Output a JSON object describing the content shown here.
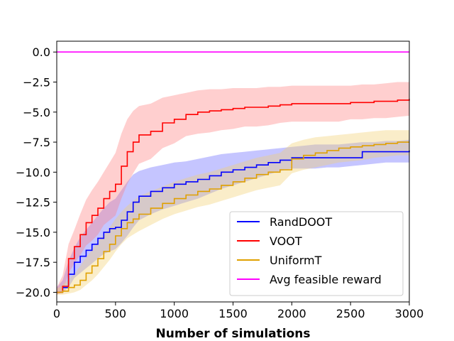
{
  "chart_data": {
    "type": "line",
    "title": "",
    "xlabel": "Number of simulations",
    "ylabel": "",
    "xlim": [
      0,
      3000
    ],
    "ylim": [
      -20.8,
      0.9
    ],
    "x_ticks": [
      0,
      500,
      1000,
      1500,
      2000,
      2500,
      3000
    ],
    "y_ticks": [
      0.0,
      -2.5,
      -5.0,
      -7.5,
      -10.0,
      -12.5,
      -15.0,
      -17.5,
      -20.0
    ],
    "grid": false,
    "legend_position": "lower-right",
    "series": [
      {
        "name": "RandDOOT",
        "color": "#0000ff",
        "band_color": "#6666ff",
        "x": [
          0,
          50,
          100,
          150,
          200,
          250,
          300,
          350,
          400,
          450,
          500,
          550,
          600,
          650,
          700,
          800,
          900,
          1000,
          1100,
          1200,
          1300,
          1400,
          1500,
          1600,
          1700,
          1800,
          1900,
          2000,
          2100,
          2200,
          2300,
          2400,
          2500,
          2600,
          2700,
          2800,
          2900,
          3000
        ],
        "y": [
          -20,
          -19.6,
          -18.5,
          -17.5,
          -17.0,
          -16.5,
          -16.0,
          -15.5,
          -15.0,
          -14.7,
          -14.6,
          -14.0,
          -13.3,
          -12.5,
          -12.0,
          -11.6,
          -11.3,
          -11.0,
          -10.8,
          -10.6,
          -10.3,
          -10.0,
          -9.8,
          -9.6,
          -9.4,
          -9.2,
          -9.0,
          -8.8,
          -8.8,
          -8.8,
          -8.8,
          -8.8,
          -8.8,
          -8.3,
          -8.3,
          -8.3,
          -8.3,
          -8.2
        ],
        "upper": [
          -19.6,
          -19.0,
          -17.4,
          -16.3,
          -15.4,
          -14.8,
          -14.2,
          -13.6,
          -13.0,
          -12.5,
          -12.2,
          -11.5,
          -10.8,
          -10.2,
          -9.9,
          -9.6,
          -9.4,
          -9.2,
          -9.1,
          -8.9,
          -8.7,
          -8.5,
          -8.4,
          -8.3,
          -8.2,
          -8.1,
          -8.0,
          -7.9,
          -7.8,
          -7.7,
          -7.7,
          -7.7,
          -7.6,
          -7.5,
          -7.5,
          -7.4,
          -7.4,
          -7.3
        ],
        "lower": [
          -20.1,
          -20.0,
          -19.6,
          -18.8,
          -18.4,
          -18.0,
          -17.6,
          -17.2,
          -16.8,
          -16.6,
          -16.4,
          -15.9,
          -15.3,
          -14.6,
          -14.0,
          -13.5,
          -13.1,
          -12.8,
          -12.5,
          -12.2,
          -11.8,
          -11.4,
          -11.1,
          -10.8,
          -10.5,
          -10.2,
          -9.9,
          -9.7,
          -9.7,
          -9.7,
          -9.6,
          -9.6,
          -9.5,
          -9.4,
          -9.3,
          -9.2,
          -9.2,
          -9.2
        ]
      },
      {
        "name": "VOOT",
        "color": "#ff0000",
        "band_color": "#ff8080",
        "x": [
          0,
          50,
          100,
          150,
          200,
          250,
          300,
          350,
          400,
          450,
          500,
          550,
          600,
          650,
          700,
          800,
          900,
          1000,
          1100,
          1200,
          1300,
          1400,
          1500,
          1600,
          1700,
          1800,
          1900,
          2000,
          2100,
          2200,
          2300,
          2400,
          2500,
          2600,
          2700,
          2800,
          2900,
          3000
        ],
        "y": [
          -20,
          -19.5,
          -17.2,
          -16.2,
          -15.2,
          -14.2,
          -13.6,
          -13.0,
          -12.2,
          -11.6,
          -11.0,
          -9.5,
          -8.3,
          -7.5,
          -6.9,
          -6.6,
          -5.9,
          -5.6,
          -5.2,
          -5.0,
          -4.9,
          -4.8,
          -4.7,
          -4.6,
          -4.6,
          -4.5,
          -4.4,
          -4.3,
          -4.3,
          -4.3,
          -4.3,
          -4.3,
          -4.2,
          -4.2,
          -4.1,
          -4.1,
          -4.0,
          -3.9
        ],
        "upper": [
          -19.6,
          -18.6,
          -16.0,
          -14.8,
          -13.5,
          -12.3,
          -11.5,
          -10.8,
          -10.0,
          -9.2,
          -8.4,
          -6.8,
          -5.6,
          -4.9,
          -4.5,
          -4.3,
          -3.8,
          -3.6,
          -3.4,
          -3.2,
          -3.1,
          -3.1,
          -3.0,
          -3.0,
          -3.0,
          -2.9,
          -2.9,
          -2.8,
          -2.8,
          -2.8,
          -2.8,
          -2.8,
          -2.8,
          -2.7,
          -2.7,
          -2.6,
          -2.5,
          -2.5
        ],
        "lower": [
          -20.2,
          -20.0,
          -18.4,
          -17.6,
          -16.9,
          -16.1,
          -15.7,
          -15.2,
          -14.4,
          -14.0,
          -13.6,
          -12.2,
          -11.0,
          -10.1,
          -9.3,
          -8.9,
          -8.0,
          -7.6,
          -7.0,
          -6.8,
          -6.7,
          -6.5,
          -6.4,
          -6.2,
          -6.2,
          -6.1,
          -5.9,
          -5.8,
          -5.8,
          -5.8,
          -5.8,
          -5.8,
          -5.6,
          -5.6,
          -5.5,
          -5.5,
          -5.4,
          -5.3
        ]
      },
      {
        "name": "UniformT",
        "color": "#e0a000",
        "band_color": "#f2d070",
        "x": [
          0,
          50,
          100,
          150,
          200,
          250,
          300,
          350,
          400,
          450,
          500,
          550,
          600,
          650,
          700,
          800,
          900,
          1000,
          1100,
          1200,
          1300,
          1400,
          1500,
          1600,
          1700,
          1800,
          1900,
          2000,
          2100,
          2200,
          2300,
          2400,
          2500,
          2600,
          2700,
          2800,
          2900,
          3000
        ],
        "y": [
          -20,
          -19.9,
          -19.6,
          -19.4,
          -19.0,
          -18.4,
          -17.8,
          -17.2,
          -16.6,
          -16.0,
          -15.3,
          -14.7,
          -14.2,
          -13.9,
          -13.5,
          -13.0,
          -12.6,
          -12.2,
          -11.9,
          -11.6,
          -11.4,
          -11.1,
          -10.8,
          -10.5,
          -10.2,
          -10.0,
          -9.8,
          -8.9,
          -8.6,
          -8.4,
          -8.2,
          -8.0,
          -7.9,
          -7.8,
          -7.7,
          -7.6,
          -7.5,
          -7.5
        ],
        "upper": [
          -19.7,
          -19.4,
          -18.9,
          -18.5,
          -17.8,
          -17.1,
          -16.5,
          -15.8,
          -15.2,
          -14.6,
          -13.9,
          -13.3,
          -12.8,
          -12.4,
          -12.0,
          -11.6,
          -11.2,
          -10.8,
          -10.5,
          -10.2,
          -10.0,
          -9.7,
          -9.4,
          -9.1,
          -8.8,
          -8.6,
          -8.4,
          -7.6,
          -7.3,
          -7.1,
          -7.0,
          -6.9,
          -6.8,
          -6.7,
          -6.6,
          -6.5,
          -6.5,
          -6.5
        ],
        "lower": [
          -20.2,
          -20.2,
          -20.1,
          -20.0,
          -19.8,
          -19.4,
          -19.0,
          -18.5,
          -17.9,
          -17.3,
          -16.6,
          -16.0,
          -15.5,
          -15.2,
          -14.9,
          -14.4,
          -13.9,
          -13.5,
          -13.2,
          -12.9,
          -12.7,
          -12.4,
          -12.1,
          -11.8,
          -11.5,
          -11.3,
          -11.1,
          -10.1,
          -9.8,
          -9.6,
          -9.4,
          -9.2,
          -9.1,
          -9.0,
          -8.8,
          -8.7,
          -8.6,
          -8.6
        ]
      },
      {
        "name": "Avg feasible reward",
        "color": "#ff00ff",
        "x": [
          0,
          3000
        ],
        "y": [
          0.0,
          0.0
        ]
      }
    ]
  }
}
